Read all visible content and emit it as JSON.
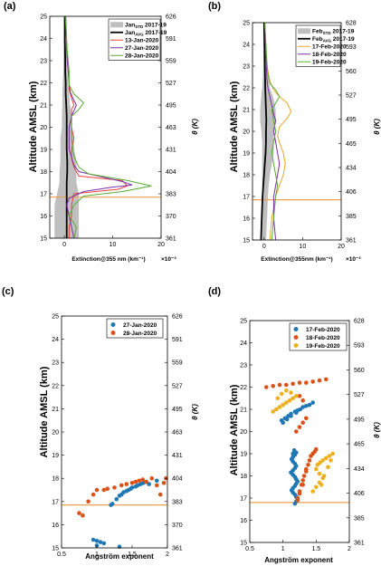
{
  "panels": [
    {
      "label": "(a)",
      "chart_data": {
        "type": "line",
        "xlabel": "Extinction@355 nm (km⁻¹)",
        "xlabel_exponent": "×10⁻³",
        "ylabel": "Altitude AMSL (km)",
        "y2label": "θ (K)",
        "xlim": [
          -3,
          20
        ],
        "ylim": [
          15,
          25
        ],
        "xticks": [
          0,
          10,
          20
        ],
        "yticks": [
          15,
          16,
          17,
          18,
          19,
          20,
          21,
          22,
          23,
          24,
          25
        ],
        "y2ticks": [
          "361",
          "370",
          "383",
          "404",
          "431",
          "463",
          "495",
          "527",
          "559",
          "591",
          "626"
        ],
        "hline": 16.85,
        "hline_color": "#f0a050",
        "legend_position": "top-right",
        "std_band": {
          "name_base": "Jan",
          "name_sub": "STD",
          "name_rest": " 2017-19",
          "color": "#bfbfbf",
          "y": [
            15,
            15.5,
            16,
            16.5,
            17,
            17.5,
            18,
            18.5,
            19,
            19.5,
            20,
            20.5,
            21,
            21.5,
            22,
            22.5,
            23,
            24,
            25
          ],
          "lower": [
            -2,
            -2,
            -2,
            -2,
            -1.5,
            -1,
            -1,
            -0.8,
            -0.8,
            -0.8,
            -0.5,
            -0.5,
            -0.4,
            -0.4,
            -0.3,
            -0.2,
            -0.2,
            -0.1,
            -0.1
          ],
          "upper": [
            3,
            3,
            3,
            3,
            3,
            2.5,
            2.5,
            2.5,
            2,
            2,
            1.5,
            1.5,
            1.2,
            1,
            0.8,
            0.6,
            0.5,
            0.3,
            0.2
          ]
        },
        "series": [
          {
            "name_base": "Jan",
            "name_sub": "AVG",
            "name_rest": " 2017-19",
            "color": "#000000",
            "width": 1.8,
            "x": [
              0.5,
              0.5,
              0.5,
              0.5,
              0.5,
              0.5,
              0.6,
              0.6,
              0.5,
              0.5,
              0.5,
              0.5,
              0.4,
              0.3,
              0.3,
              0.2,
              0.2,
              0.1,
              0.1
            ],
            "y": [
              15,
              15.5,
              16,
              16.5,
              17,
              17.5,
              18,
              18.5,
              19,
              19.5,
              20,
              20.5,
              21,
              21.5,
              22,
              22.5,
              23,
              24,
              25
            ]
          },
          {
            "name": "13-Jan-2020",
            "color": "#e8453c",
            "width": 1,
            "x": [
              1,
              1,
              1.5,
              1.5,
              2,
              11,
              13,
              12,
              3,
              2,
              1.5,
              1.5,
              2,
              1.5,
              1.5,
              1.5,
              2,
              1.5,
              1,
              1,
              0.8,
              0.5,
              0.3
            ],
            "y": [
              15,
              15.5,
              16,
              16.5,
              17,
              17.2,
              17.35,
              17.6,
              17.8,
              18.2,
              18.6,
              19,
              19.5,
              20,
              20.5,
              20.8,
              21,
              21.3,
              21.7,
              22,
              22.5,
              23.5,
              25
            ]
          },
          {
            "name": "27-Jan-2020",
            "color": "#7b2fa8",
            "width": 1,
            "x": [
              2,
              1.5,
              1,
              0.5,
              1,
              4,
              10,
              14,
              12,
              7,
              3,
              2,
              1,
              1,
              1.5,
              2.5,
              2,
              1.2,
              1,
              0.6,
              0.3
            ],
            "y": [
              15,
              15.5,
              16,
              16.5,
              16.8,
              17.1,
              17.3,
              17.4,
              17.55,
              17.8,
              18,
              18.3,
              19,
              20,
              20.5,
              21,
              21.2,
              21.6,
              22,
              23,
              25
            ]
          },
          {
            "name": "28-Jan-2020",
            "color": "#5aab34",
            "width": 1,
            "x": [
              2,
              2.5,
              1,
              2,
              4,
              12,
              18,
              13,
              5,
              3,
              2,
              1.5,
              1.5,
              3,
              4,
              2,
              1,
              1,
              0.6,
              0.2
            ],
            "y": [
              15,
              15.5,
              16,
              16.5,
              16.9,
              17.1,
              17.35,
              17.6,
              17.9,
              18.2,
              18.7,
              19.5,
              20.5,
              20.8,
              21.1,
              21.5,
              21.9,
              22.5,
              23.5,
              25
            ]
          }
        ]
      }
    },
    {
      "label": "(b)",
      "chart_data": {
        "type": "line",
        "xlabel": "Extinction@355nm (km⁻¹)",
        "xlabel_exponent": "×10⁻³",
        "ylabel": "Altitude AMSL (km)",
        "y2label": "θ (K)",
        "xlim": [
          -3,
          20
        ],
        "ylim": [
          15,
          25
        ],
        "xticks": [
          0,
          10,
          20
        ],
        "yticks": [
          15,
          16,
          17,
          18,
          19,
          20,
          21,
          22,
          23,
          24,
          25
        ],
        "y2ticks": [
          "361",
          "385",
          "406",
          "434",
          "465",
          "495",
          "527",
          "560",
          "593",
          "628"
        ],
        "hline": 16.85,
        "hline_color": "#f0a050",
        "legend_position": "top-right",
        "std_band": {
          "name_base": "Feb",
          "name_sub": "STD",
          "name_rest": " 2017-19",
          "color": "#bfbfbf",
          "y": [
            15,
            16,
            17,
            17.5,
            18,
            18.5,
            19,
            19.5,
            20,
            20.5,
            21,
            21.5,
            22,
            22.5,
            23,
            24,
            25
          ],
          "lower": [
            -0.5,
            -0.5,
            -0.5,
            -0.5,
            -0.5,
            -0.5,
            -0.5,
            -0.5,
            -0.7,
            -1,
            -1,
            -0.8,
            -0.5,
            -0.3,
            -0.2,
            -0.1,
            -0.1
          ],
          "upper": [
            0.5,
            0.8,
            1,
            1.2,
            1.5,
            2,
            2.5,
            2.5,
            2.5,
            3,
            3,
            2.5,
            1.5,
            1,
            0.5,
            0.3,
            0.2
          ]
        },
        "series": [
          {
            "name_base": "Feb",
            "name_sub": "AVG",
            "name_rest": " 2017-19",
            "color": "#000000",
            "width": 1.8,
            "x": [
              -0.8,
              -0.6,
              -0.4,
              -0.2,
              0,
              0.2,
              0.4,
              0.5,
              0.5,
              0.6,
              0.5,
              0.4,
              0.3,
              0.2,
              0.1,
              0
            ],
            "y": [
              15,
              16,
              17,
              17.5,
              18,
              18.5,
              19,
              19.5,
              20,
              20.5,
              21,
              21.5,
              22,
              23,
              24,
              25
            ]
          },
          {
            "name": "17-Feb-2020",
            "color": "#e8a72b",
            "width": 1,
            "x": [
              1.5,
              2,
              3,
              4,
              5,
              5.5,
              5,
              4,
              3.5,
              4,
              6,
              7,
              6,
              4,
              2.5,
              1.5,
              1,
              0.5,
              0.2
            ],
            "y": [
              15,
              16,
              17,
              17.5,
              18,
              18.5,
              19,
              19.5,
              19.8,
              20.2,
              20.6,
              20.9,
              21.3,
              21.6,
              21.9,
              22.3,
              22.8,
              23.5,
              25
            ]
          },
          {
            "name": "18-Feb-2020",
            "color": "#7b2fa8",
            "width": 1,
            "x": [
              3,
              2.5,
              2.5,
              3,
              3.5,
              4,
              3.5,
              3,
              2.5,
              3,
              2.5,
              2,
              1.5,
              1,
              0.7,
              0.5,
              0.2
            ],
            "y": [
              15,
              16,
              17,
              17.5,
              18,
              18.5,
              19,
              19.5,
              20,
              20.5,
              20.8,
              21.2,
              21.6,
              22,
              22.5,
              23.5,
              25
            ]
          },
          {
            "name": "19-Feb-2020",
            "color": "#5aab34",
            "width": 1,
            "x": [
              2,
              2.5,
              3,
              3.5,
              3,
              2.5,
              2,
              2.5,
              3,
              2.5,
              2,
              3,
              4,
              3,
              1.5,
              1,
              0.8,
              0.5,
              0.2
            ],
            "y": [
              15,
              16,
              17,
              17.5,
              18,
              18.5,
              19,
              19.5,
              20,
              20.5,
              21,
              21.3,
              21.6,
              21.9,
              22.2,
              22.6,
              23,
              24,
              25
            ]
          }
        ]
      }
    },
    {
      "label": "(c)",
      "chart_data": {
        "type": "scatter",
        "xlabel": "Angström exponent",
        "ylabel": "Altitude AMSL (km)",
        "y2label": "θ (K)",
        "xlim": [
          0.5,
          2
        ],
        "ylim": [
          15,
          25
        ],
        "xticks": [
          0.5,
          1,
          1.5,
          2
        ],
        "yticks": [
          15,
          16,
          17,
          18,
          19,
          20,
          21,
          22,
          23,
          24,
          25
        ],
        "y2ticks": [
          "361",
          "370",
          "383",
          "404",
          "431",
          "463",
          "495",
          "527",
          "559",
          "591",
          "626"
        ],
        "hline": 16.85,
        "hline_color": "#f0a050",
        "legend_position": "top-right",
        "series": [
          {
            "name": "27-Jan-2020",
            "color": "#1f77b4",
            "x": [
              1.22,
              1.28,
              1.32,
              1.35,
              1.38,
              1.42,
              1.45,
              1.48,
              1.5,
              1.55,
              1.58,
              1.62,
              1.66,
              1.7,
              1.74,
              1.85,
              1.2,
              0.95,
              1.0,
              1.05,
              1.1,
              1.0,
              1.32
            ],
            "y": [
              16.9,
              17.1,
              17.25,
              17.3,
              17.4,
              17.45,
              17.5,
              17.55,
              17.6,
              17.65,
              17.7,
              17.75,
              17.8,
              17.85,
              17.75,
              17.9,
              16.85,
              15.35,
              15.3,
              15.25,
              15.2,
              15.1,
              15.05
            ]
          },
          {
            "name": "28-Jan-2020",
            "color": "#d95319",
            "x": [
              0.75,
              0.8,
              0.88,
              0.95,
              1.0,
              1.1,
              1.15,
              1.25,
              1.35,
              1.42,
              1.5,
              1.55,
              1.6,
              1.65,
              1.7,
              1.78,
              1.85,
              1.9,
              1.95,
              1.98
            ],
            "y": [
              16.5,
              16.4,
              17.0,
              17.3,
              17.5,
              17.5,
              17.55,
              17.6,
              17.7,
              17.75,
              17.8,
              17.85,
              17.9,
              17.95,
              17.85,
              18.0,
              17.7,
              17.3,
              17.8,
              18.0
            ]
          }
        ]
      }
    },
    {
      "label": "(d)",
      "chart_data": {
        "type": "scatter",
        "xlabel": "Angström exponent",
        "ylabel": "Altitude AMSL (km)",
        "y2label": "θ (K)",
        "xlim": [
          0.5,
          2
        ],
        "ylim": [
          15,
          25
        ],
        "xticks": [
          0.5,
          1,
          1.5,
          2
        ],
        "yticks": [
          15,
          16,
          17,
          18,
          19,
          20,
          21,
          22,
          23,
          24,
          25
        ],
        "y2ticks": [
          "361",
          "385",
          "406",
          "434",
          "465",
          "495",
          "527",
          "560",
          "593",
          "628"
        ],
        "hline": 16.8,
        "hline_color": "#f0a050",
        "legend_position": "top-right",
        "series": [
          {
            "name": "17-Feb-2020",
            "color": "#1f77b4",
            "x": [
              1.18,
              1.2,
              1.22,
              1.2,
              1.18,
              1.15,
              1.13,
              1.15,
              1.18,
              1.2,
              1.22,
              1.2,
              1.18,
              1.15,
              1.12,
              1.15,
              1.18,
              1.2,
              1.18,
              1.15,
              1.13,
              1.15,
              1.18,
              1.2,
              1.17,
              1.15,
              0.98,
              1.03,
              1.08,
              1.12,
              1.18,
              1.22,
              1.26,
              1.3,
              1.35,
              1.4,
              1.45,
              1.0,
              1.06,
              1.12,
              1.2
            ],
            "y": [
              16.75,
              16.85,
              16.95,
              17.05,
              17.15,
              17.25,
              17.35,
              17.45,
              17.55,
              17.65,
              17.75,
              17.85,
              17.95,
              18.05,
              18.15,
              18.25,
              18.35,
              18.45,
              18.55,
              18.65,
              18.75,
              18.85,
              18.95,
              19.05,
              19.15,
              19.0,
              20.5,
              20.6,
              20.7,
              20.8,
              20.9,
              20.95,
              21.0,
              21.1,
              21.15,
              21.2,
              21.3,
              20.4,
              20.55,
              20.7,
              20.85
            ]
          },
          {
            "name": "18-Feb-2020",
            "color": "#d95319",
            "x": [
              1.22,
              1.25,
              1.28,
              1.3,
              1.32,
              1.35,
              1.38,
              1.4,
              1.42,
              1.45,
              1.48,
              1.5,
              1.35,
              1.3,
              1.25,
              1.22,
              0.75,
              0.85,
              0.95,
              1.05,
              1.15,
              1.25,
              1.35,
              1.45,
              1.55,
              1.65,
              1.2,
              1.25,
              1.3,
              1.35,
              1.3,
              1.25
            ],
            "y": [
              17.0,
              17.3,
              17.6,
              17.8,
              18.0,
              18.3,
              18.5,
              18.7,
              18.9,
              19.0,
              19.1,
              19.2,
              18.2,
              17.6,
              17.2,
              16.9,
              22.0,
              22.05,
              22.1,
              22.1,
              22.15,
              22.2,
              22.2,
              22.25,
              22.3,
              22.35,
              20.0,
              20.2,
              20.4,
              20.6,
              21.4,
              21.6
            ]
          },
          {
            "name": "19-Feb-2020",
            "color": "#edb120",
            "x": [
              1.45,
              1.5,
              1.55,
              1.6,
              1.55,
              1.5,
              1.52,
              1.56,
              1.6,
              1.65,
              1.7,
              1.75,
              1.72,
              1.68,
              1.62,
              1.58,
              0.85,
              0.9,
              0.95,
              1.0,
              1.05,
              1.1,
              1.15,
              1.2,
              1.12,
              1.05,
              0.98,
              0.92
            ],
            "y": [
              17.3,
              17.5,
              17.7,
              17.9,
              18.1,
              18.3,
              18.5,
              18.6,
              18.7,
              18.8,
              18.9,
              19.0,
              18.7,
              18.4,
              18.0,
              17.6,
              20.9,
              21.0,
              21.1,
              21.2,
              21.3,
              21.4,
              21.5,
              21.6,
              21.75,
              21.85,
              21.7,
              21.5
            ]
          }
        ]
      }
    }
  ]
}
